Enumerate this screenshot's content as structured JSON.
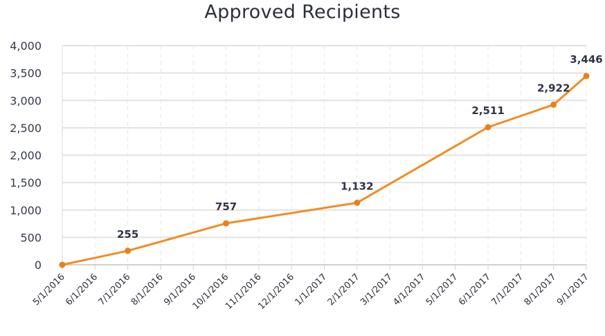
{
  "chart_data": {
    "type": "line",
    "title": "Approved Recipients",
    "xlabel": "",
    "ylabel": "",
    "ylim": [
      0,
      4000
    ],
    "yticks": [
      "0",
      "500",
      "1,000",
      "1,500",
      "2,000",
      "2,500",
      "3,000",
      "3,500",
      "4,000"
    ],
    "ytick_values": [
      0,
      500,
      1000,
      1500,
      2000,
      2500,
      3000,
      3500,
      4000
    ],
    "xticks": [
      "5/1/2016",
      "6/1/2016",
      "7/1/2016",
      "8/1/2016",
      "9/1/2016",
      "10/1/2016",
      "11/1/2016",
      "12/1/2016",
      "1/1/2017",
      "2/1/2017",
      "3/1/2017",
      "4/1/2017",
      "5/1/2017",
      "6/1/2017",
      "7/1/2017",
      "8/1/2017",
      "9/1/2017"
    ],
    "grid": true,
    "series": [
      {
        "color": "#F28C1F",
        "points": [
          {
            "x": "5/1/2016",
            "y": 0,
            "label": ""
          },
          {
            "x": "7/1/2016",
            "y": 255,
            "label": "255"
          },
          {
            "x": "10/1/2016",
            "y": 757,
            "label": "757"
          },
          {
            "x": "2/1/2017",
            "y": 1132,
            "label": "1,132"
          },
          {
            "x": "6/1/2017",
            "y": 2511,
            "label": "2,511"
          },
          {
            "x": "8/1/2017",
            "y": 2922,
            "label": "2,922"
          },
          {
            "x": "9/1/2017",
            "y": 3446,
            "label": "3,446"
          }
        ]
      }
    ]
  }
}
